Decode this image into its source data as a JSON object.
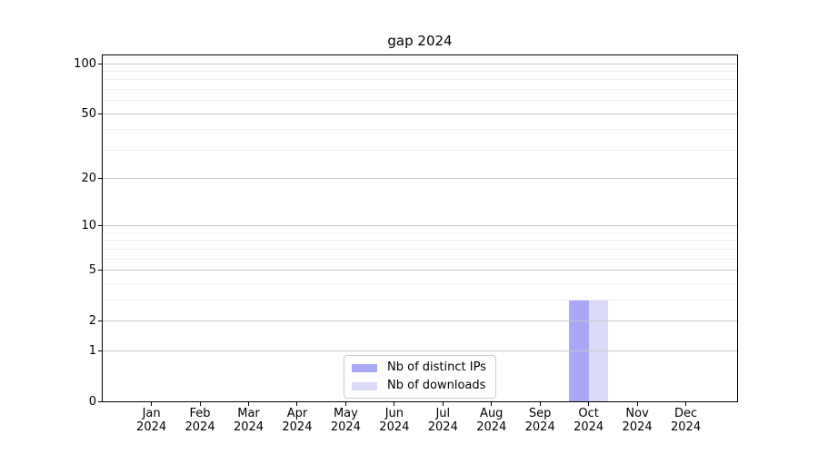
{
  "figure": {
    "title": "gap 2024"
  },
  "chart_data": {
    "type": "bar",
    "title": "gap 2024",
    "categories": [
      "Jan",
      "Feb",
      "Mar",
      "Apr",
      "May",
      "Jun",
      "Jul",
      "Aug",
      "Sep",
      "Oct",
      "Nov",
      "Dec"
    ],
    "category_year": "2024",
    "series": [
      {
        "name": "Nb of distinct IPs",
        "color": "#a8a8f4",
        "values": [
          0,
          0,
          0,
          0,
          0,
          0,
          0,
          0,
          0,
          3,
          0,
          0
        ]
      },
      {
        "name": "Nb of downloads",
        "color": "#dbdbf8",
        "values": [
          0,
          0,
          0,
          0,
          0,
          0,
          0,
          0,
          0,
          3,
          0,
          0
        ]
      }
    ],
    "y_axis": {
      "scale": "log1p",
      "major_ticks": [
        0,
        1,
        2,
        5,
        10,
        20,
        50,
        100
      ],
      "minor_gridlines": [
        3,
        4,
        6,
        7,
        8,
        9,
        30,
        40,
        60,
        70,
        80,
        90
      ],
      "ylim": [
        0,
        112
      ]
    },
    "x_axis": {
      "tick_label_format": "Mon\nYYYY"
    },
    "legend": {
      "position": "lower-center"
    },
    "grid": {
      "major_color": "#c9c9c9",
      "minor_color": "#efefef"
    },
    "background": "#ffffff"
  }
}
